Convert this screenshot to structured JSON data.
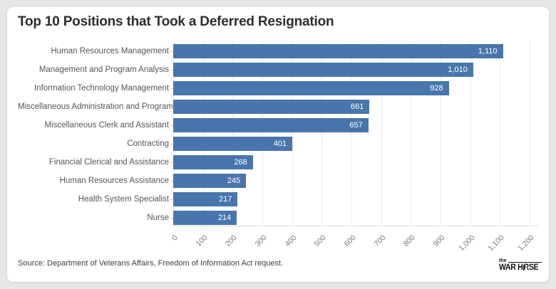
{
  "chart_data": {
    "type": "bar",
    "orientation": "horizontal",
    "title": "Top 10 Positions that Took a Deferred Resignation",
    "categories": [
      "Human Resources Management",
      "Management and Program Analysis",
      "Information Technology Management",
      "Miscellaneous Administration and Program",
      "Miscellaneous Clerk and Assistant",
      "Contracting",
      "Financial Clerical and Assistance",
      "Human Resources Assistance",
      "Health System Specialist",
      "Nurse"
    ],
    "values": [
      1110,
      1010,
      928,
      661,
      657,
      401,
      268,
      245,
      217,
      214
    ],
    "value_labels": [
      "1,110",
      "1,010",
      "928",
      "661",
      "657",
      "401",
      "268",
      "245",
      "217",
      "214"
    ],
    "xlabel": "",
    "ylabel": "",
    "xlim": [
      0,
      1200
    ],
    "x_ticks": [
      0,
      100,
      200,
      300,
      400,
      500,
      600,
      700,
      800,
      900,
      1000,
      1100,
      1200
    ],
    "x_tick_labels": [
      "0",
      "100",
      "200",
      "300",
      "400",
      "500",
      "600",
      "700",
      "800",
      "900",
      "1,000",
      "1,100",
      "1,200"
    ],
    "grid": true,
    "legend": "none"
  },
  "footer": {
    "source": "Source: Department of Veterans Affairs, Freedom of Information Act request.",
    "logo": {
      "the": "the",
      "word_start": "WAR H",
      "word_end": "RSE"
    }
  },
  "colors": {
    "bar": "#4876ac",
    "value_label": "#ffffff",
    "page_bg": "#e7e7e7",
    "card_bg": "#ffffff",
    "title": "#2d2d2d",
    "category_label": "#555555",
    "tick_label": "#757575",
    "gridline": "#ebebeb",
    "axis_line": "#d9d9d9",
    "source_text": "#404040"
  }
}
